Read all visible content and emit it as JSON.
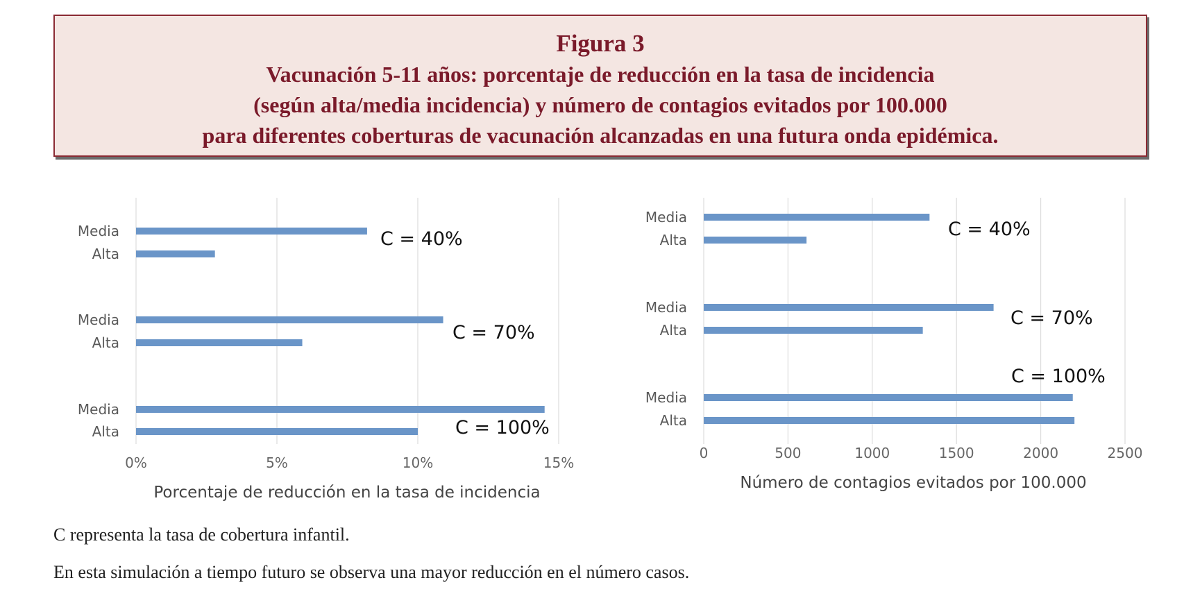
{
  "figure": {
    "number_label": "Figura 3",
    "title_lines": [
      "Vacunación 5-11 años: porcentaje de reducción en la tasa de incidencia",
      "(según alta/media incidencia) y número de contagios evitados por 100.000",
      "para diferentes coberturas de vacunación alcanzadas en una futura onda epidémica."
    ]
  },
  "colors": {
    "bar": "#6a95c8",
    "grid": "#dcdcdc",
    "title_text": "#7a1a2a",
    "title_bg": "#f4e6e2",
    "title_border": "#8a2a33"
  },
  "chart_data": [
    {
      "type": "bar",
      "orientation": "horizontal",
      "categories": [
        "Media",
        "Alta"
      ],
      "groups": [
        {
          "label": "C = 40%",
          "values": [
            8.2,
            2.8
          ]
        },
        {
          "label": "C = 70%",
          "values": [
            10.9,
            5.9
          ]
        },
        {
          "label": "C = 100%",
          "values": [
            14.5,
            10.0
          ]
        }
      ],
      "xlabel": "Porcentaje de reducción en la tasa de incidencia",
      "xlim": [
        0,
        15
      ],
      "xticks": [
        0,
        5,
        10,
        15
      ],
      "xtick_labels": [
        "0%",
        "5%",
        "10%",
        "15%"
      ],
      "grid": true
    },
    {
      "type": "bar",
      "orientation": "horizontal",
      "categories": [
        "Media",
        "Alta"
      ],
      "groups": [
        {
          "label": "C = 40%",
          "values": [
            1340,
            610
          ]
        },
        {
          "label": "C = 70%",
          "values": [
            1720,
            1300
          ]
        },
        {
          "label": "C = 100%",
          "values": [
            2190,
            2200
          ]
        }
      ],
      "xlabel": "Número de contagios evitados por 100.000",
      "xlim": [
        0,
        2500
      ],
      "xticks": [
        0,
        500,
        1000,
        1500,
        2000,
        2500
      ],
      "xtick_labels": [
        "0",
        "500",
        "1000",
        "1500",
        "2000",
        "2500"
      ],
      "grid": true
    }
  ],
  "notes": [
    "C representa la tasa de cobertura infantil.",
    "En esta simulación a tiempo futuro se observa una mayor reducción en el número casos."
  ]
}
